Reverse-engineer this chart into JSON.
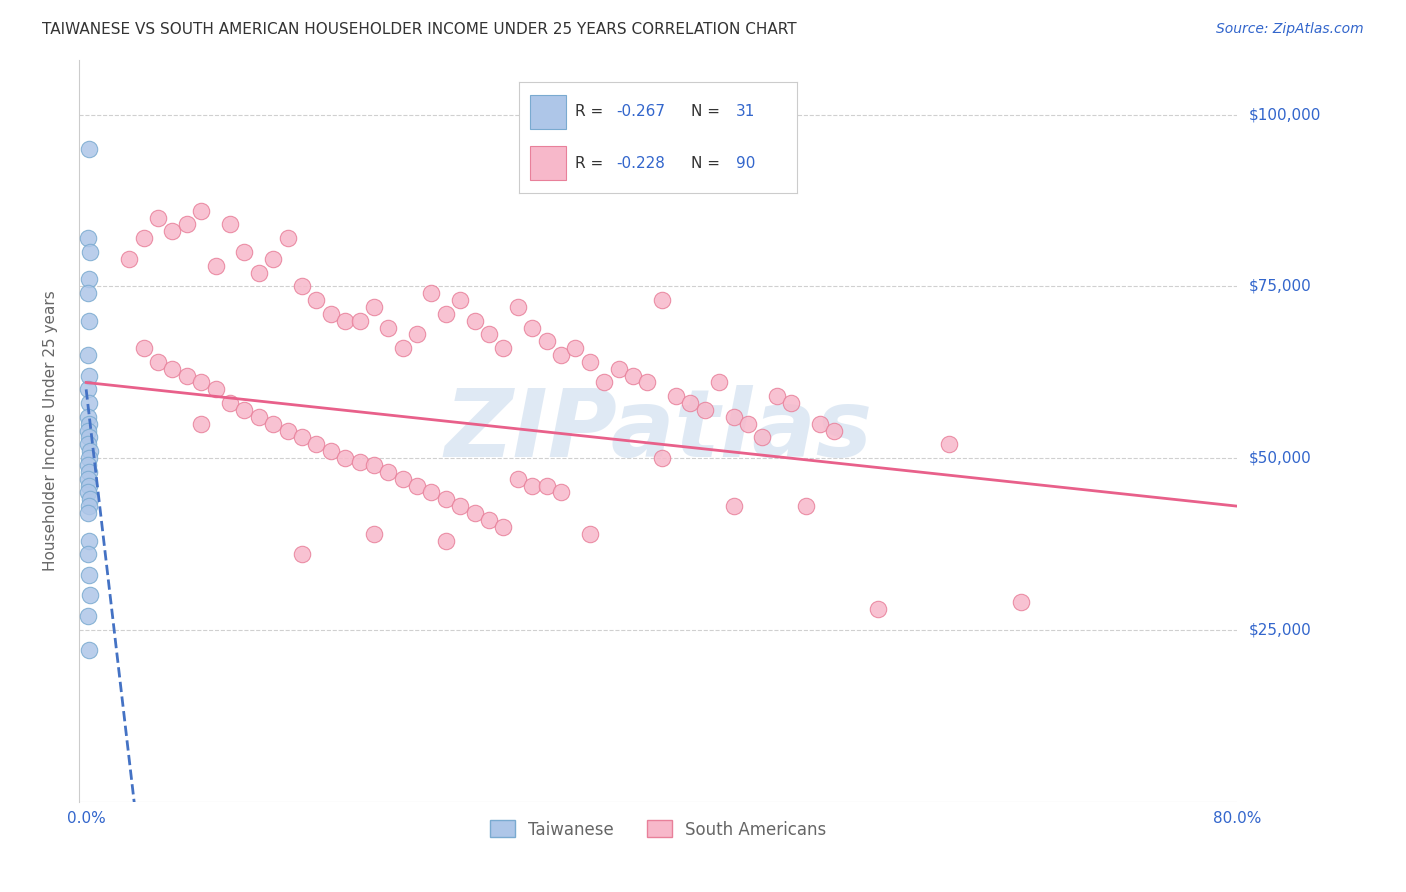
{
  "title": "TAIWANESE VS SOUTH AMERICAN HOUSEHOLDER INCOME UNDER 25 YEARS CORRELATION CHART",
  "source": "Source: ZipAtlas.com",
  "ylabel": "Householder Income Under 25 years",
  "xlim": [
    -0.005,
    0.8
  ],
  "ylim": [
    0,
    108000
  ],
  "yticks": [
    25000,
    50000,
    75000,
    100000
  ],
  "ytick_labels": [
    "$25,000",
    "$50,000",
    "$75,000",
    "$100,000"
  ],
  "xticks": [
    0.0,
    0.1,
    0.2,
    0.3,
    0.4,
    0.5,
    0.6,
    0.7,
    0.8
  ],
  "xtick_labels": [
    "0.0%",
    "",
    "",
    "",
    "",
    "",
    "",
    "",
    "80.0%"
  ],
  "watermark": "ZIPatlas",
  "taiwanese_color": "#aec6e8",
  "south_american_color": "#f7b8ca",
  "taiwanese_edge": "#7aaad0",
  "south_american_edge": "#e8809a",
  "trendline_taiwanese_color": "#4472c4",
  "trendline_sa_color": "#e8608a",
  "background_color": "#ffffff",
  "grid_color": "#d0d0d0",
  "title_color": "#333333",
  "label_color": "#666666",
  "value_color": "#3366cc",
  "taiwanese_points_x": [
    0.002,
    0.001,
    0.003,
    0.002,
    0.001,
    0.002,
    0.001,
    0.002,
    0.001,
    0.002,
    0.001,
    0.002,
    0.001,
    0.002,
    0.001,
    0.003,
    0.002,
    0.001,
    0.002,
    0.001,
    0.002,
    0.001,
    0.003,
    0.002,
    0.001,
    0.002,
    0.001,
    0.002,
    0.003,
    0.001,
    0.002
  ],
  "taiwanese_points_y": [
    95000,
    82000,
    80000,
    76000,
    74000,
    70000,
    65000,
    62000,
    60000,
    58000,
    56000,
    55000,
    54000,
    53000,
    52000,
    51000,
    50000,
    49000,
    48000,
    47000,
    46000,
    45000,
    44000,
    43000,
    42000,
    38000,
    36000,
    33000,
    30000,
    27000,
    22000
  ],
  "sa_points_x": [
    0.03,
    0.04,
    0.05,
    0.06,
    0.07,
    0.08,
    0.09,
    0.1,
    0.11,
    0.12,
    0.13,
    0.14,
    0.15,
    0.16,
    0.17,
    0.18,
    0.19,
    0.2,
    0.21,
    0.22,
    0.23,
    0.24,
    0.25,
    0.26,
    0.27,
    0.28,
    0.29,
    0.3,
    0.31,
    0.32,
    0.33,
    0.34,
    0.35,
    0.36,
    0.37,
    0.38,
    0.39,
    0.4,
    0.41,
    0.42,
    0.43,
    0.44,
    0.45,
    0.46,
    0.47,
    0.48,
    0.49,
    0.5,
    0.51,
    0.52,
    0.04,
    0.05,
    0.06,
    0.07,
    0.08,
    0.09,
    0.1,
    0.11,
    0.12,
    0.13,
    0.14,
    0.15,
    0.16,
    0.17,
    0.18,
    0.19,
    0.2,
    0.21,
    0.22,
    0.23,
    0.24,
    0.25,
    0.26,
    0.27,
    0.28,
    0.29,
    0.3,
    0.31,
    0.32,
    0.33,
    0.15,
    0.2,
    0.25,
    0.45,
    0.55,
    0.65,
    0.6,
    0.08,
    0.35,
    0.4
  ],
  "sa_points_y": [
    79000,
    82000,
    85000,
    83000,
    84000,
    86000,
    78000,
    84000,
    80000,
    77000,
    79000,
    82000,
    75000,
    73000,
    71000,
    70000,
    70000,
    72000,
    69000,
    66000,
    68000,
    74000,
    71000,
    73000,
    70000,
    68000,
    66000,
    72000,
    69000,
    67000,
    65000,
    66000,
    64000,
    61000,
    63000,
    62000,
    61000,
    73000,
    59000,
    58000,
    57000,
    61000,
    56000,
    55000,
    53000,
    59000,
    58000,
    43000,
    55000,
    54000,
    66000,
    64000,
    63000,
    62000,
    61000,
    60000,
    58000,
    57000,
    56000,
    55000,
    54000,
    53000,
    52000,
    51000,
    50000,
    49500,
    49000,
    48000,
    47000,
    46000,
    45000,
    44000,
    43000,
    42000,
    41000,
    40000,
    47000,
    46000,
    46000,
    45000,
    36000,
    39000,
    38000,
    43000,
    28000,
    29000,
    52000,
    55000,
    39000,
    50000
  ],
  "tw_trend_x0": 0.0,
  "tw_trend_y0": 60000,
  "tw_trend_slope": -1800000,
  "sa_trend_x0": 0.0,
  "sa_trend_y0": 61000,
  "sa_trend_x1": 0.8,
  "sa_trend_y1": 43000
}
